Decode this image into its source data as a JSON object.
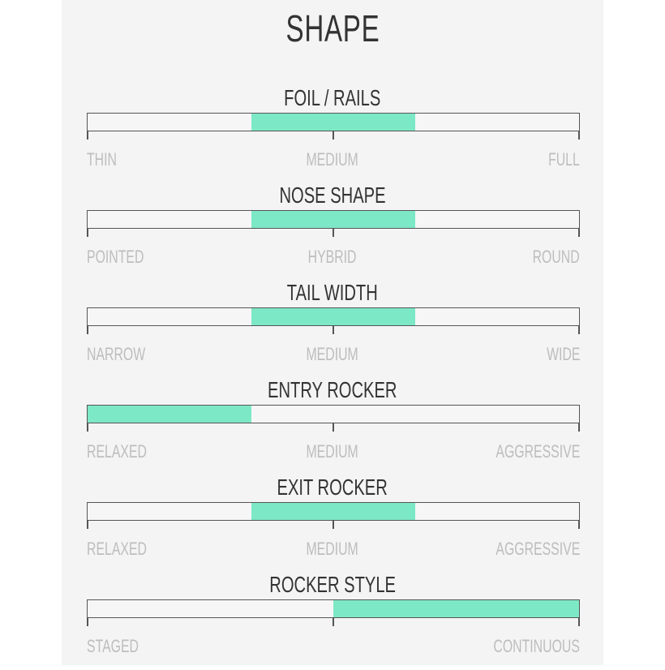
{
  "title": "SHAPE",
  "fill_color": "#7de8c6",
  "rows": [
    {
      "title": "FOIL / RAILS",
      "labels": [
        "THIN",
        "MEDIUM",
        "FULL"
      ],
      "fill_start": 0.3333,
      "fill_end": 0.6667
    },
    {
      "title": "NOSE SHAPE",
      "labels": [
        "POINTED",
        "HYBRID",
        "ROUND"
      ],
      "fill_start": 0.3333,
      "fill_end": 0.6667
    },
    {
      "title": "TAIL WIDTH",
      "labels": [
        "NARROW",
        "MEDIUM",
        "WIDE"
      ],
      "fill_start": 0.3333,
      "fill_end": 0.6667
    },
    {
      "title": "ENTRY ROCKER",
      "labels": [
        "RELAXED",
        "MEDIUM",
        "AGGRESSIVE"
      ],
      "fill_start": 0,
      "fill_end": 0.3333
    },
    {
      "title": "EXIT ROCKER",
      "labels": [
        "RELAXED",
        "MEDIUM",
        "AGGRESSIVE"
      ],
      "fill_start": 0.3333,
      "fill_end": 0.6667
    },
    {
      "title": "ROCKER STYLE",
      "labels": [
        "STAGED",
        "CONTINUOUS"
      ],
      "fill_start": 0.5,
      "fill_end": 1
    }
  ]
}
